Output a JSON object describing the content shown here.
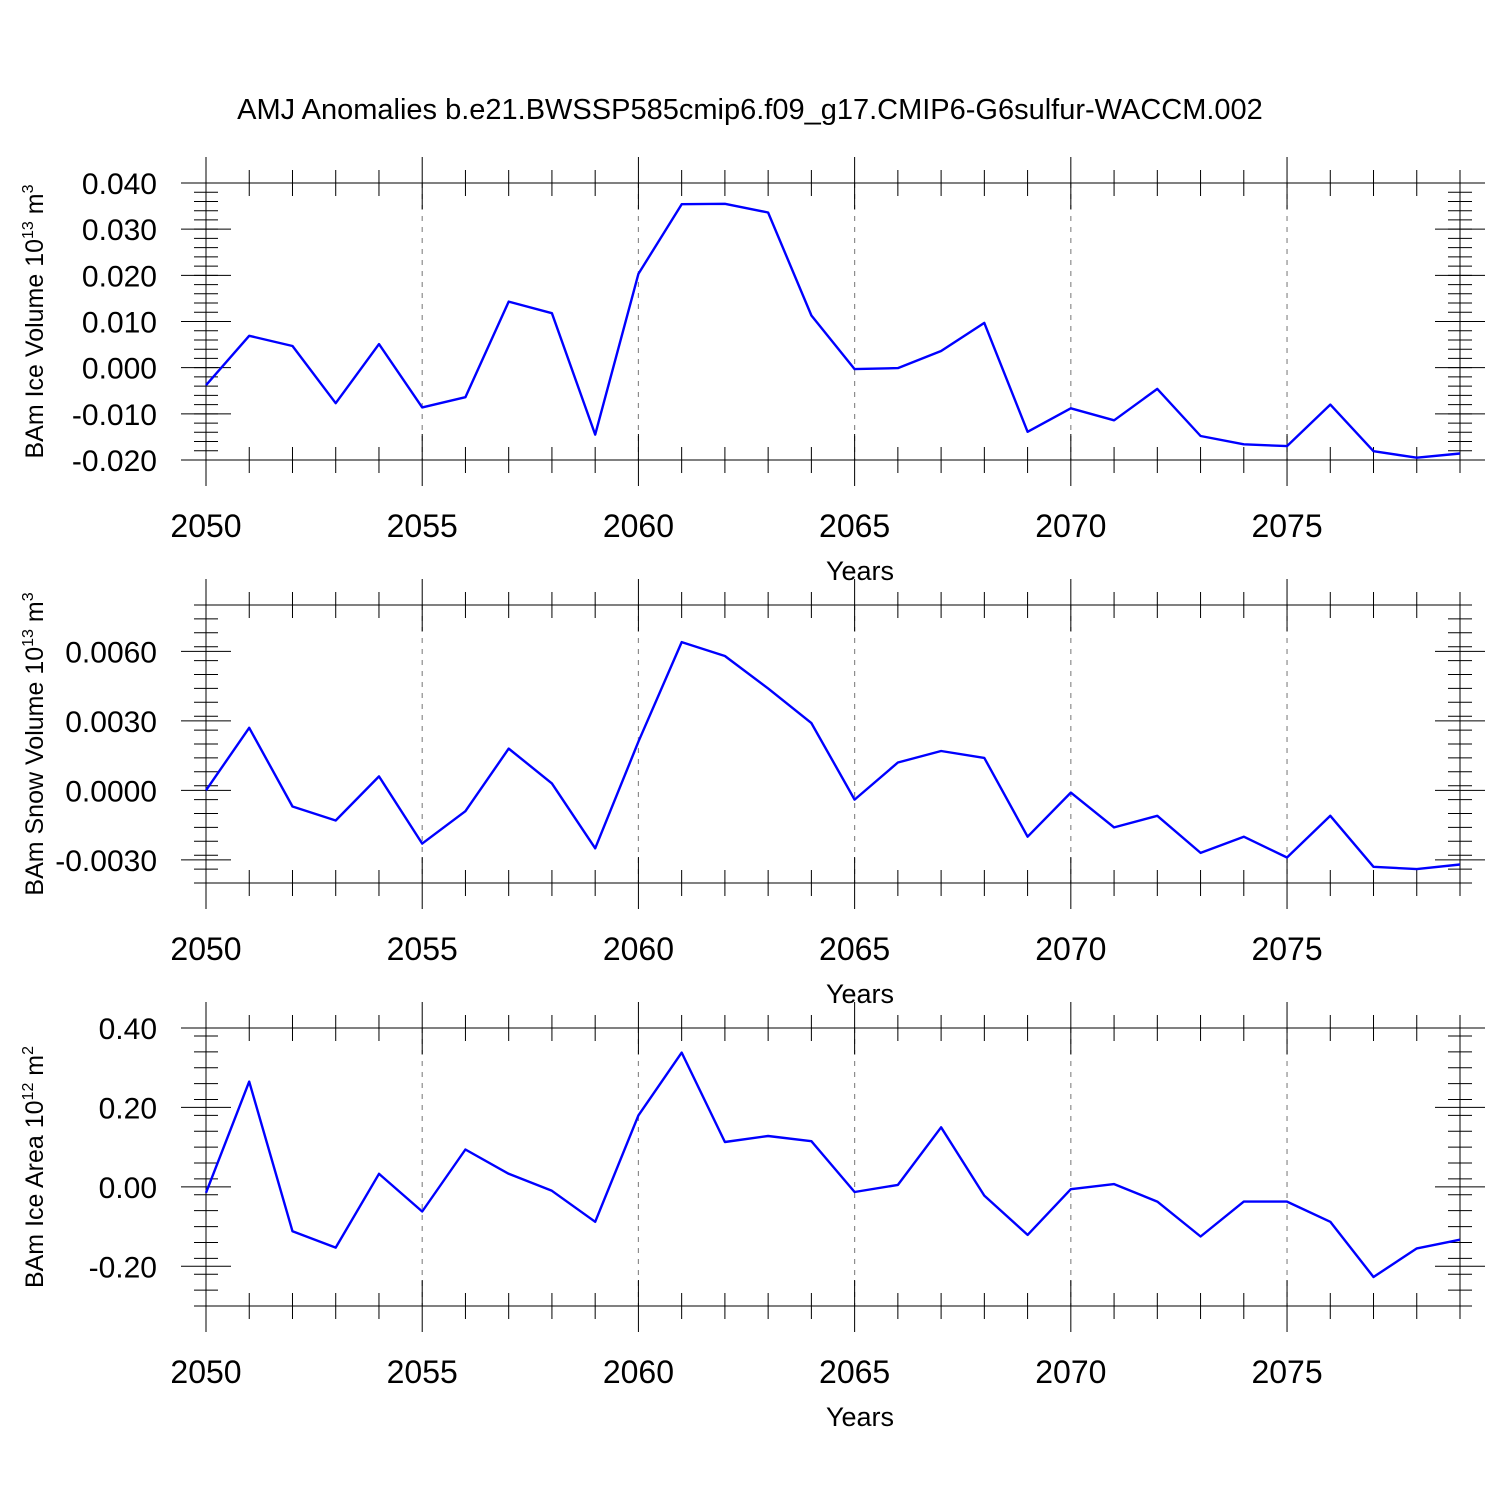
{
  "figure_title": "AMJ Anomalies b.e21.BWSSP585cmip6.f09_g17.CMIP6-G6sulfur-WACCM.002",
  "colors": {
    "series": "#0000ff",
    "axes": "#000000",
    "grid": "#8c8c8c"
  },
  "chart_data": [
    {
      "type": "line",
      "xlabel": "Years",
      "ylabel": {
        "text": "BAm Ice Volume 10",
        "sup": "13",
        "unit": " m",
        "unit_sup": "3"
      },
      "xlim": [
        2050,
        2079
      ],
      "ylim": [
        -0.02,
        0.04
      ],
      "yticks": [
        -0.02,
        -0.01,
        0.0,
        0.01,
        0.02,
        0.03,
        0.04
      ],
      "ytick_labels": [
        "-0.020",
        "-0.010",
        "0.000",
        "0.010",
        "0.020",
        "0.030",
        "0.040"
      ],
      "yminor_step": 0.002,
      "xticks": [
        2050,
        2055,
        2060,
        2065,
        2070,
        2075
      ],
      "xtick_labels": [
        "2050",
        "2055",
        "2060",
        "2065",
        "2070",
        "2075"
      ],
      "grid": "x-dashed",
      "x": [
        2050,
        2051,
        2052,
        2053,
        2054,
        2055,
        2056,
        2057,
        2058,
        2059,
        2060,
        2061,
        2062,
        2063,
        2064,
        2065,
        2066,
        2067,
        2068,
        2069,
        2070,
        2071,
        2072,
        2073,
        2074,
        2075,
        2076,
        2077,
        2078,
        2079
      ],
      "values": [
        -0.0038,
        0.0069,
        0.0047,
        -0.0077,
        0.0051,
        -0.0086,
        -0.0064,
        0.0143,
        0.0118,
        -0.0145,
        0.0203,
        0.0354,
        0.0355,
        0.0336,
        0.0113,
        -0.0003,
        -0.0001,
        0.0036,
        0.0097,
        -0.0139,
        -0.0088,
        -0.0114,
        -0.0046,
        -0.0148,
        -0.0166,
        -0.017,
        -0.008,
        -0.0181,
        -0.0195,
        -0.0186
      ]
    },
    {
      "type": "line",
      "xlabel": "Years",
      "ylabel": {
        "text": "BAm Snow Volume 10",
        "sup": "13",
        "unit": " m",
        "unit_sup": "3"
      },
      "xlim": [
        2050,
        2079
      ],
      "ylim": [
        -0.004,
        0.008
      ],
      "yticks": [
        -0.003,
        0.0,
        0.003,
        0.006
      ],
      "ytick_labels": [
        "-0.0030",
        "0.0000",
        "0.0030",
        "0.0060"
      ],
      "yminor_step": 0.0006,
      "xticks": [
        2050,
        2055,
        2060,
        2065,
        2070,
        2075
      ],
      "xtick_labels": [
        "2050",
        "2055",
        "2060",
        "2065",
        "2070",
        "2075"
      ],
      "grid": "x-dashed",
      "x": [
        2050,
        2051,
        2052,
        2053,
        2054,
        2055,
        2056,
        2057,
        2058,
        2059,
        2060,
        2061,
        2062,
        2063,
        2064,
        2065,
        2066,
        2067,
        2068,
        2069,
        2070,
        2071,
        2072,
        2073,
        2074,
        2075,
        2076,
        2077,
        2078,
        2079
      ],
      "values": [
        0.0,
        0.0027,
        -0.0007,
        -0.0013,
        0.0006,
        -0.0023,
        -0.0009,
        0.0018,
        0.0003,
        -0.0025,
        0.0021,
        0.0064,
        0.0058,
        0.0044,
        0.0029,
        -0.0004,
        0.0012,
        0.0017,
        0.0014,
        -0.002,
        -0.0001,
        -0.0016,
        -0.0011,
        -0.0027,
        -0.002,
        -0.0029,
        -0.0011,
        -0.0033,
        -0.0034,
        -0.0032
      ]
    },
    {
      "type": "line",
      "xlabel": "Years",
      "ylabel": {
        "text": "BAm Ice Area 10",
        "sup": "12",
        "unit": " m",
        "unit_sup": "2"
      },
      "xlim": [
        2050,
        2079
      ],
      "ylim": [
        -0.3,
        0.4
      ],
      "yticks": [
        -0.2,
        0.0,
        0.2,
        0.4
      ],
      "ytick_labels": [
        "-0.20",
        "0.00",
        "0.20",
        "0.40"
      ],
      "yminor_step": 0.04,
      "xticks": [
        2050,
        2055,
        2060,
        2065,
        2070,
        2075
      ],
      "xtick_labels": [
        "2050",
        "2055",
        "2060",
        "2065",
        "2070",
        "2075"
      ],
      "grid": "x-dashed",
      "x": [
        2050,
        2051,
        2052,
        2053,
        2054,
        2055,
        2056,
        2057,
        2058,
        2059,
        2060,
        2061,
        2062,
        2063,
        2064,
        2065,
        2066,
        2067,
        2068,
        2069,
        2070,
        2071,
        2072,
        2073,
        2074,
        2075,
        2076,
        2077,
        2078,
        2079
      ],
      "values": [
        -0.015,
        0.265,
        -0.112,
        -0.153,
        0.033,
        -0.062,
        0.094,
        0.033,
        -0.01,
        -0.088,
        0.18,
        0.338,
        0.113,
        0.128,
        0.115,
        -0.013,
        0.005,
        0.15,
        -0.022,
        -0.121,
        -0.006,
        0.007,
        -0.037,
        -0.125,
        -0.037,
        -0.037,
        -0.088,
        -0.227,
        -0.155,
        -0.133
      ]
    }
  ]
}
